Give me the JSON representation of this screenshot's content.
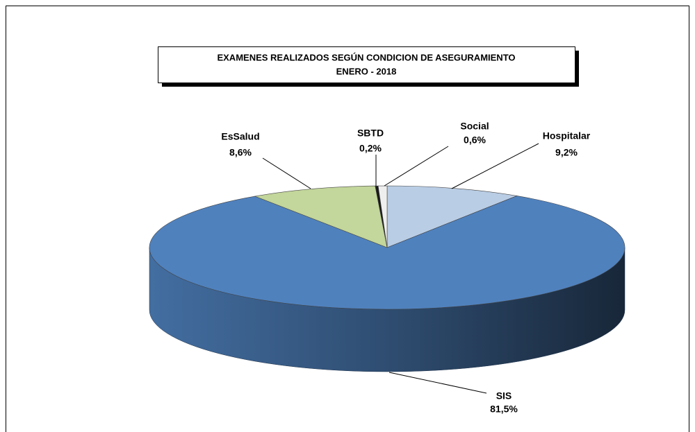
{
  "chart_data": {
    "type": "pie3d",
    "title": "EXAMENES REALIZADOS SEGÚN CONDICION DE ASEGURAMIENTO",
    "subtitle": "ENERO  -  2018",
    "categories": [
      "Hospitalar",
      "SIS",
      "EsSalud",
      "SBTD",
      "Social"
    ],
    "values": [
      9.2,
      81.5,
      8.6,
      0.2,
      0.6
    ],
    "value_labels": [
      "9,2%",
      "81,5%",
      "8,6%",
      "0,2%",
      "0,6%"
    ],
    "colors": [
      "#b9cde5",
      "#4f81bd",
      "#c3d69b",
      "#1a1a1a",
      "#eeeeee"
    ]
  }
}
